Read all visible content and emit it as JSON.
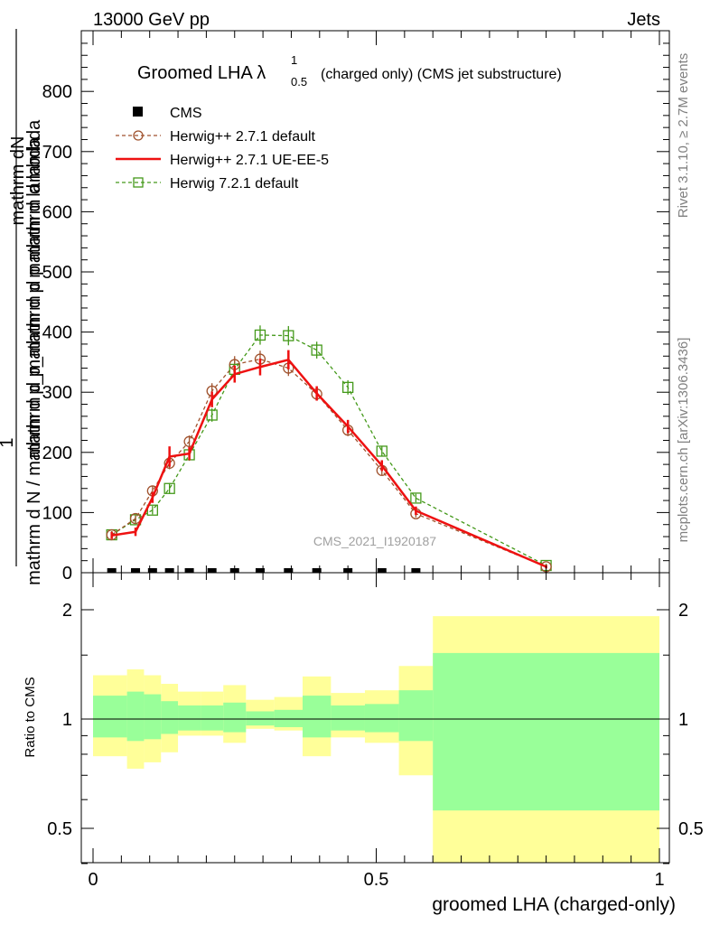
{
  "header": {
    "energy": "13000 GeV pp",
    "process": "Jets"
  },
  "side_labels": {
    "rivet": "Rivet 3.1.10, ≥ 2.7M events",
    "mcplots": "mcplots.cern.ch [arXiv:1306.3436]"
  },
  "colors": {
    "herwigpp_default": "#a0522d",
    "herwigpp_ueee5": "#ee1111",
    "herwig7": "#44991a",
    "band_inner": "#99ff99",
    "band_outer": "#ffff99"
  },
  "chart_data": [
    {
      "type": "line",
      "title": "Groomed LHA λ",
      "title_sup": "1",
      "title_sub": "0.5",
      "title_suffix": "(charged only) (CMS jet substructure)",
      "ylabel_main": "mathrm d N / mathrm d p_mathrm d p mathrm d lambda",
      "ylabel_top": "mathrm dN",
      "ylabel_mid": "mathrm d p_mathrm d p mathrm d lambda",
      "ylabel_frac": "1",
      "xlim": [
        0,
        1
      ],
      "ylim": [
        0,
        900
      ],
      "yticks": [
        0,
        100,
        200,
        300,
        400,
        500,
        600,
        700,
        800
      ],
      "ytick_labels": [
        "0",
        "100",
        "200",
        "300",
        "400",
        "500",
        "600",
        "700",
        "800"
      ],
      "watermark": "CMS_2021_I1920187",
      "legend": [
        "CMS",
        "Herwig++ 2.7.1 default",
        "Herwig++ 2.7.1 UE-EE-5",
        "Herwig 7.2.1 default"
      ],
      "legend_position": "top-left",
      "x": [
        0.033,
        0.075,
        0.105,
        0.135,
        0.17,
        0.21,
        0.25,
        0.295,
        0.345,
        0.395,
        0.45,
        0.51,
        0.57,
        0.8
      ],
      "series": [
        {
          "name": "CMS",
          "values": [
            0,
            0,
            0,
            0,
            0,
            0,
            0,
            0,
            0,
            0,
            0,
            0,
            0,
            null
          ]
        },
        {
          "name": "Herwig++ 2.7.1 default",
          "values": [
            63,
            90,
            136,
            182,
            218,
            302,
            346,
            355,
            340,
            297,
            237,
            170,
            98,
            10
          ],
          "errors": [
            6,
            6,
            8,
            10,
            10,
            13,
            14,
            14,
            13,
            11,
            10,
            8,
            6,
            3
          ]
        },
        {
          "name": "Herwig++ 2.7.1 UE-EE-5",
          "values": [
            62,
            68,
            125,
            193,
            198,
            288,
            330,
            342,
            354,
            298,
            243,
            178,
            103,
            10
          ],
          "errors": [
            6,
            7,
            9,
            17,
            11,
            13,
            14,
            14,
            16,
            12,
            11,
            9,
            7,
            3
          ]
        },
        {
          "name": "Herwig 7.2.1 default",
          "values": [
            63,
            88,
            104,
            140,
            196,
            262,
            338,
            395,
            394,
            370,
            308,
            202,
            124,
            12
          ],
          "errors": [
            6,
            6,
            7,
            9,
            10,
            11,
            14,
            16,
            16,
            14,
            12,
            9,
            7,
            3
          ]
        }
      ]
    },
    {
      "type": "area",
      "ylabel": "Ratio to CMS",
      "xlabel": "groomed LHA (charged-only)",
      "xlim": [
        0,
        1
      ],
      "ylim": [
        0.38,
        2.25
      ],
      "yscale": "log",
      "xticks": [
        0,
        0.5,
        1
      ],
      "xtick_labels": [
        "0",
        "0.5",
        "1"
      ],
      "yticks": [
        0.5,
        1,
        2
      ],
      "ytick_labels": [
        "0.5",
        "1",
        "2"
      ],
      "bin_edges": [
        0,
        0.06,
        0.09,
        0.12,
        0.15,
        0.19,
        0.23,
        0.27,
        0.32,
        0.37,
        0.42,
        0.48,
        0.54,
        0.6,
        1.0
      ],
      "outer_low": [
        0.79,
        0.73,
        0.76,
        0.81,
        0.9,
        0.9,
        0.86,
        0.94,
        0.93,
        0.79,
        0.89,
        0.86,
        0.7,
        0.38
      ],
      "outer_high": [
        1.32,
        1.37,
        1.32,
        1.25,
        1.19,
        1.19,
        1.24,
        1.13,
        1.15,
        1.31,
        1.18,
        1.2,
        1.4,
        1.92
      ],
      "inner_low": [
        0.89,
        0.87,
        0.88,
        0.91,
        0.93,
        0.93,
        0.92,
        0.96,
        0.95,
        0.89,
        0.93,
        0.92,
        0.87,
        0.56
      ],
      "inner_high": [
        1.16,
        1.19,
        1.17,
        1.12,
        1.09,
        1.09,
        1.11,
        1.05,
        1.06,
        1.16,
        1.09,
        1.1,
        1.2,
        1.52
      ]
    }
  ]
}
